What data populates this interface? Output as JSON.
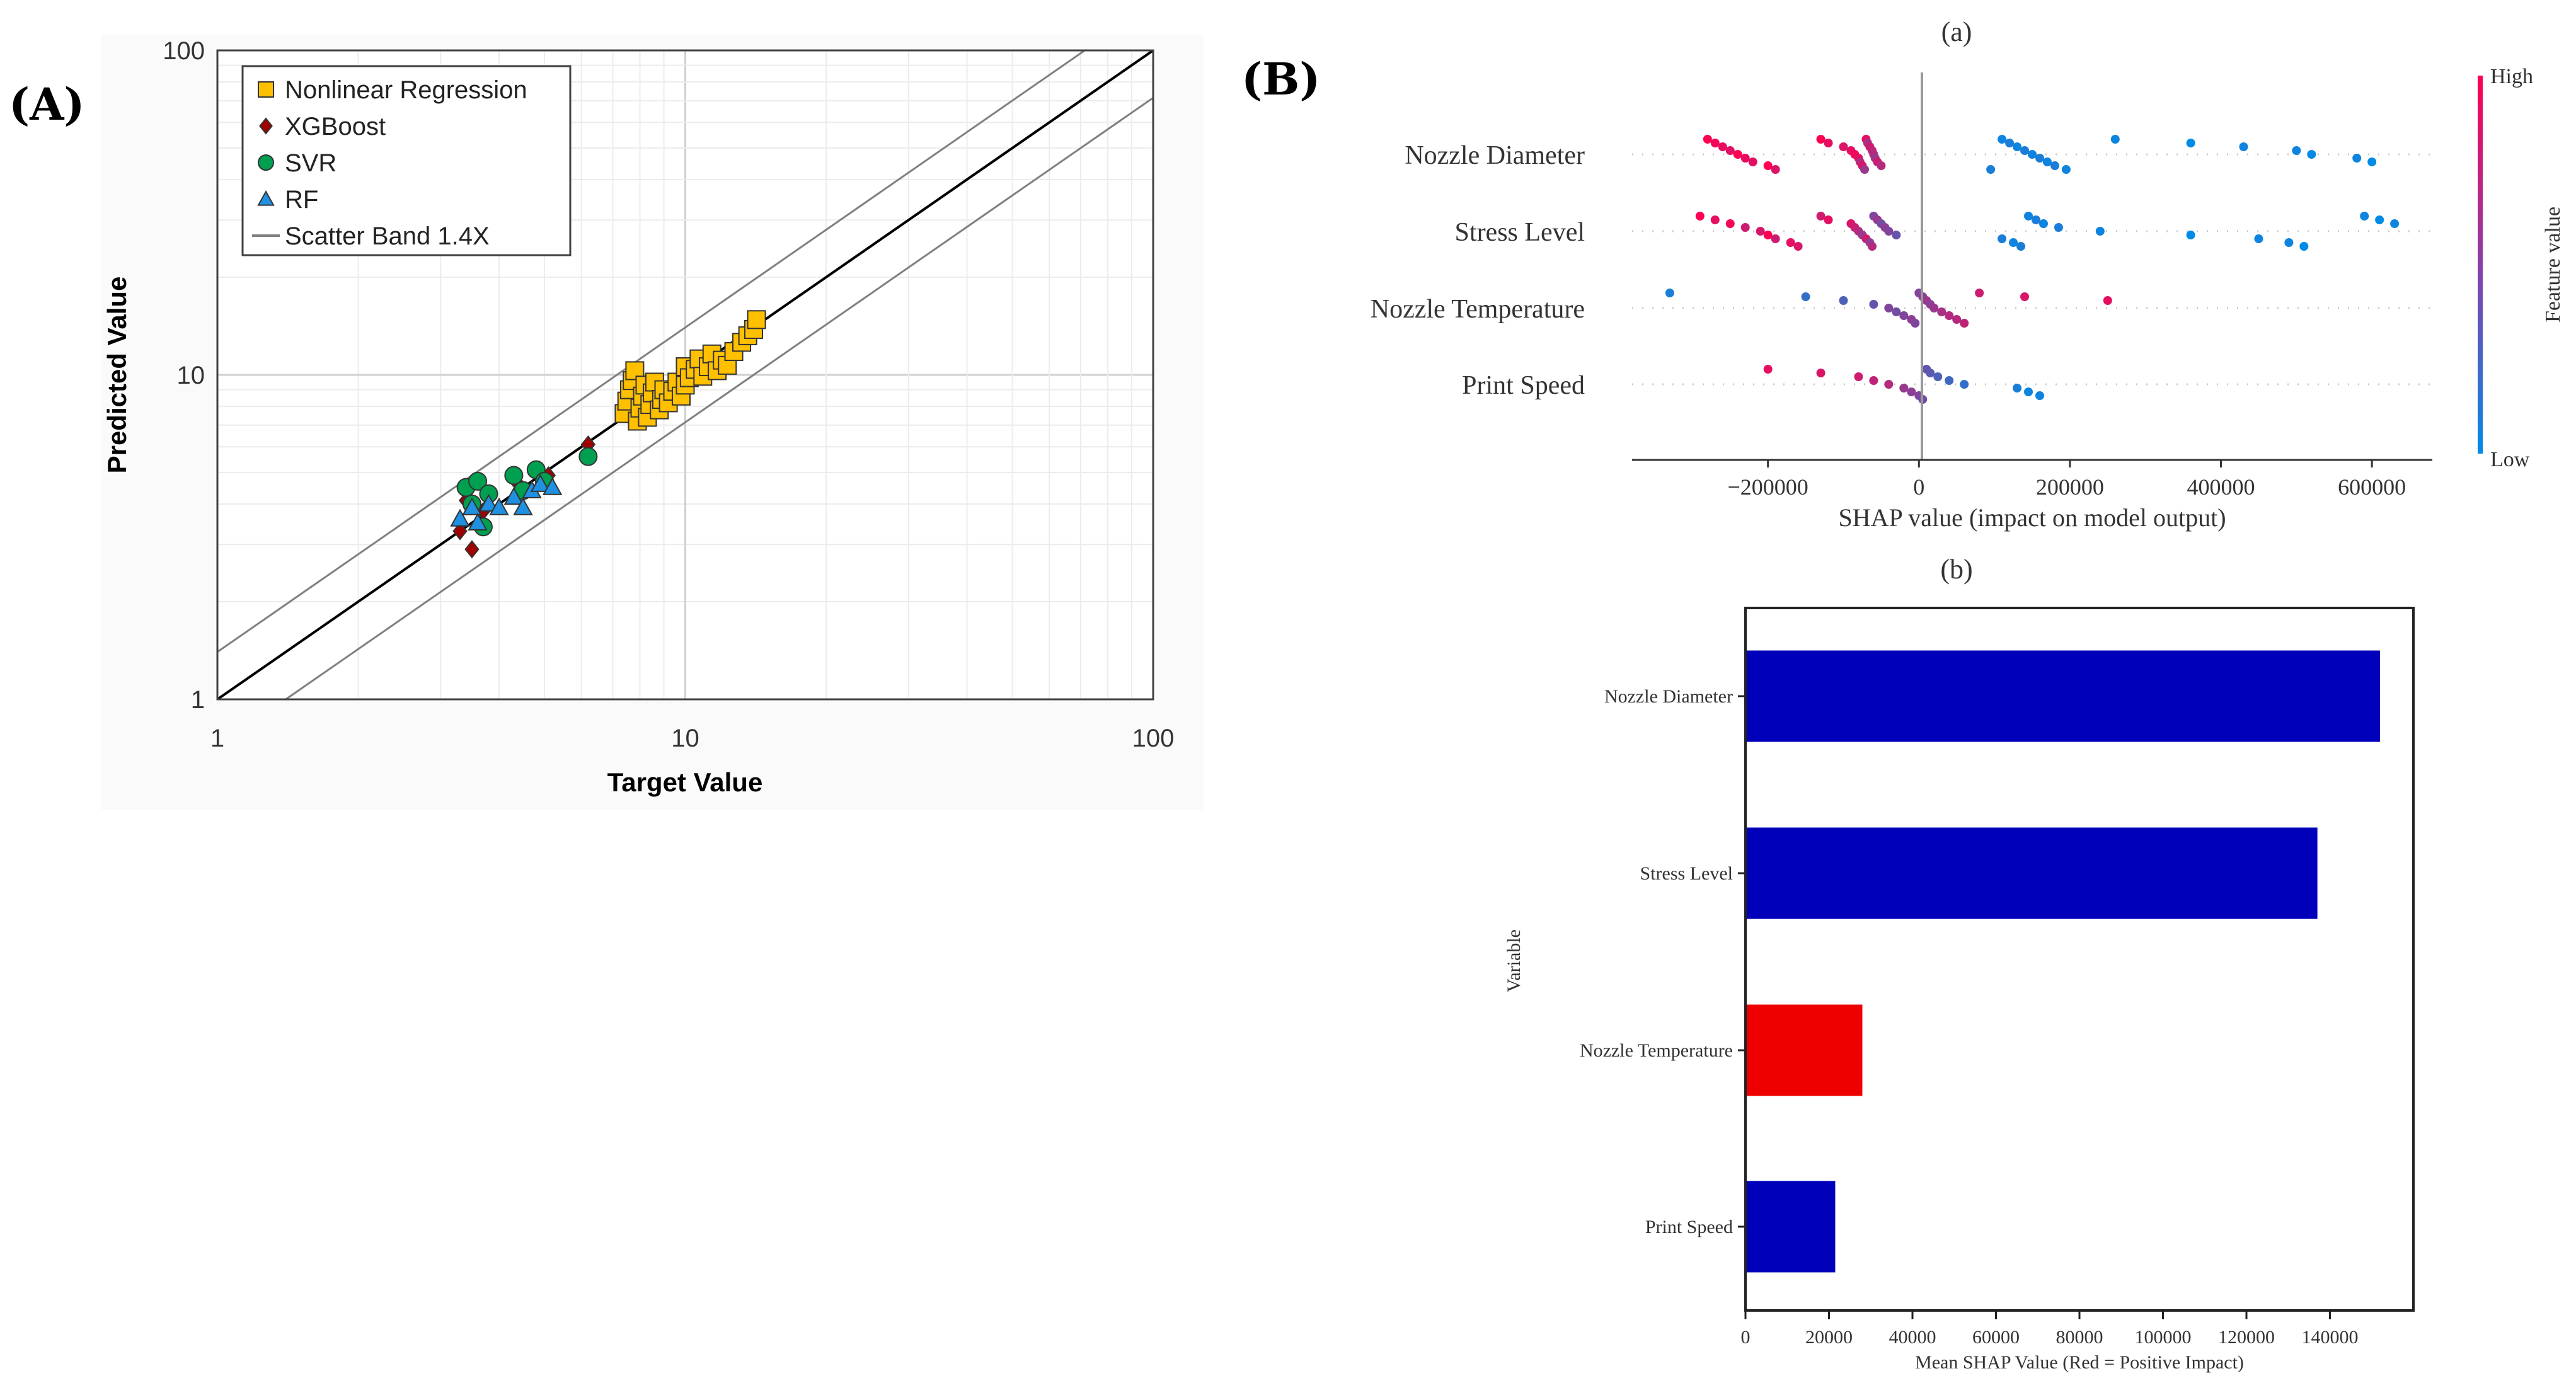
{
  "panels": {
    "a_label": "(A)",
    "b_label": "(B)"
  },
  "chart_data": [
    {
      "id": "A",
      "type": "scatter",
      "title": "",
      "xlabel": "Target Value",
      "ylabel": "Predicted Value",
      "xscale": "log",
      "yscale": "log",
      "xlim": [
        1,
        100
      ],
      "ylim": [
        1,
        100
      ],
      "x_ticks": [
        "1",
        "10",
        "100"
      ],
      "y_ticks": [
        "1",
        "10",
        "100"
      ],
      "grid": true,
      "legend_position": "top-left",
      "reference_lines": [
        {
          "name": "",
          "factor": 1,
          "color": "#000000"
        },
        {
          "name": "Scatter Band 1.4X",
          "factor": 1.4,
          "color": "#808080"
        },
        {
          "name": "Scatter Band 1.4X",
          "factor": 0.7142857,
          "color": "#808080"
        }
      ],
      "legend": [
        {
          "name": "Nonlinear Regression",
          "marker": "square",
          "color": "#FFC000"
        },
        {
          "name": "XGBoost",
          "marker": "diamond",
          "color": "#A00000"
        },
        {
          "name": "SVR",
          "marker": "circle",
          "color": "#00A050"
        },
        {
          "name": "RF",
          "marker": "triangle",
          "color": "#2090E0"
        },
        {
          "name": "Scatter Band 1.4X",
          "marker": "line",
          "color": "#808080"
        }
      ],
      "series": [
        {
          "name": "Nonlinear Regression",
          "marker": "square",
          "color": "#FFC000",
          "points": [
            [
              7.4,
              7.6
            ],
            [
              7.5,
              8.3
            ],
            [
              7.6,
              9.0
            ],
            [
              7.7,
              9.6
            ],
            [
              7.8,
              10.3
            ],
            [
              7.9,
              7.2
            ],
            [
              8.0,
              7.9
            ],
            [
              8.1,
              8.6
            ],
            [
              8.2,
              9.3
            ],
            [
              8.3,
              7.4
            ],
            [
              8.4,
              8.1
            ],
            [
              8.5,
              8.8
            ],
            [
              8.6,
              9.5
            ],
            [
              8.8,
              7.8
            ],
            [
              8.9,
              8.4
            ],
            [
              9.0,
              9.0
            ],
            [
              9.2,
              8.2
            ],
            [
              9.4,
              8.9
            ],
            [
              9.6,
              9.5
            ],
            [
              9.8,
              8.6
            ],
            [
              10.0,
              9.3
            ],
            [
              10.0,
              10.6
            ],
            [
              10.2,
              9.8
            ],
            [
              10.5,
              10.4
            ],
            [
              10.7,
              11.2
            ],
            [
              10.9,
              9.9
            ],
            [
              11.2,
              10.6
            ],
            [
              11.4,
              11.6
            ],
            [
              11.7,
              10.3
            ],
            [
              12.0,
              11.1
            ],
            [
              12.3,
              10.7
            ],
            [
              12.7,
              11.8
            ],
            [
              13.2,
              12.6
            ],
            [
              13.6,
              13.2
            ],
            [
              14.0,
              13.8
            ],
            [
              14.2,
              14.8
            ]
          ]
        },
        {
          "name": "XGBoost",
          "marker": "diamond",
          "color": "#A00000",
          "points": [
            [
              3.3,
              3.3
            ],
            [
              3.4,
              4.1
            ],
            [
              3.5,
              2.9
            ],
            [
              3.7,
              3.8
            ],
            [
              4.4,
              4.6
            ],
            [
              5.1,
              4.9
            ],
            [
              6.2,
              6.1
            ]
          ]
        },
        {
          "name": "SVR",
          "marker": "circle",
          "color": "#00A050",
          "points": [
            [
              3.4,
              4.5
            ],
            [
              3.5,
              4.0
            ],
            [
              3.6,
              4.7
            ],
            [
              3.7,
              3.4
            ],
            [
              3.8,
              4.3
            ],
            [
              4.3,
              4.9
            ],
            [
              4.5,
              4.4
            ],
            [
              4.8,
              5.1
            ],
            [
              5.0,
              4.7
            ],
            [
              6.2,
              5.6
            ]
          ]
        },
        {
          "name": "RF",
          "marker": "triangle",
          "color": "#2090E0",
          "points": [
            [
              3.3,
              3.6
            ],
            [
              3.5,
              3.9
            ],
            [
              3.6,
              3.5
            ],
            [
              3.8,
              4.0
            ],
            [
              4.0,
              3.9
            ],
            [
              4.3,
              4.2
            ],
            [
              4.5,
              3.9
            ],
            [
              4.7,
              4.4
            ],
            [
              4.9,
              4.6
            ],
            [
              5.2,
              4.5
            ]
          ]
        }
      ]
    },
    {
      "id": "B-a",
      "type": "scatter",
      "subtitle": "(a)",
      "xlabel": "SHAP value (impact on model output)",
      "categories": [
        "Nozzle Diameter",
        "Stress Level",
        "Nozzle Temperature",
        "Print Speed"
      ],
      "xlim": [
        -380000,
        680000
      ],
      "x_ticks": [
        -200000,
        0,
        200000,
        400000,
        600000
      ],
      "colorbar": {
        "label": "Feature value",
        "high": "High",
        "low": "Low",
        "high_color": "#FF0052",
        "low_color": "#008BE6"
      },
      "series": [
        {
          "name": "Nozzle Diameter",
          "points": [
            [
              -280000,
              1
            ],
            [
              -270000,
              0.95
            ],
            [
              -260000,
              0.9
            ],
            [
              -250000,
              0.88
            ],
            [
              -240000,
              1
            ],
            [
              -230000,
              0.92
            ],
            [
              -220000,
              0.9
            ],
            [
              -200000,
              1
            ],
            [
              -190000,
              0.85
            ],
            [
              -130000,
              1
            ],
            [
              -120000,
              0.9
            ],
            [
              -100000,
              0.85
            ],
            [
              -90000,
              0.9
            ],
            [
              -85000,
              0.95
            ],
            [
              -80000,
              0.9
            ],
            [
              -78000,
              0.7
            ],
            [
              -75000,
              0.85
            ],
            [
              -72000,
              0.6
            ],
            [
              -70000,
              0.9
            ],
            [
              -68000,
              0.65
            ],
            [
              -65000,
              0.8
            ],
            [
              -62000,
              0.75
            ],
            [
              -60000,
              0.7
            ],
            [
              -58000,
              0.6
            ],
            [
              -55000,
              0.8
            ],
            [
              -50000,
              0.7
            ],
            [
              95000,
              0.1
            ],
            [
              110000,
              0.05
            ],
            [
              120000,
              0.1
            ],
            [
              130000,
              0.05
            ],
            [
              140000,
              0.1
            ],
            [
              150000,
              0.05
            ],
            [
              160000,
              0.1
            ],
            [
              170000,
              0.05
            ],
            [
              180000,
              0.1
            ],
            [
              195000,
              0.05
            ],
            [
              260000,
              0.05
            ],
            [
              360000,
              0.0
            ],
            [
              430000,
              0.05
            ],
            [
              500000,
              0.05
            ],
            [
              520000,
              0.0
            ],
            [
              580000,
              0.05
            ],
            [
              600000,
              0.0
            ]
          ]
        },
        {
          "name": "Stress Level",
          "points": [
            [
              -290000,
              1
            ],
            [
              -270000,
              0.9
            ],
            [
              -250000,
              0.95
            ],
            [
              -230000,
              0.8
            ],
            [
              -210000,
              0.85
            ],
            [
              -200000,
              1
            ],
            [
              -190000,
              0.8
            ],
            [
              -170000,
              0.9
            ],
            [
              -160000,
              0.85
            ],
            [
              -130000,
              0.8
            ],
            [
              -120000,
              0.9
            ],
            [
              -90000,
              0.85
            ],
            [
              -85000,
              0.8
            ],
            [
              -80000,
              0.7
            ],
            [
              -75000,
              0.6
            ],
            [
              -70000,
              0.8
            ],
            [
              -65000,
              0.55
            ],
            [
              -62000,
              0.7
            ],
            [
              -60000,
              0.5
            ],
            [
              -55000,
              0.6
            ],
            [
              -50000,
              0.45
            ],
            [
              -45000,
              0.55
            ],
            [
              -40000,
              0.5
            ],
            [
              -30000,
              0.4
            ],
            [
              110000,
              0.1
            ],
            [
              125000,
              0.05
            ],
            [
              135000,
              0.1
            ],
            [
              145000,
              0.05
            ],
            [
              155000,
              0.1
            ],
            [
              165000,
              0.05
            ],
            [
              185000,
              0.1
            ],
            [
              240000,
              0.05
            ],
            [
              360000,
              0.0
            ],
            [
              450000,
              0.05
            ],
            [
              490000,
              0.05
            ],
            [
              510000,
              0.0
            ],
            [
              590000,
              0.05
            ],
            [
              610000,
              0.0
            ],
            [
              630000,
              0.05
            ]
          ]
        },
        {
          "name": "Nozzle Temperature",
          "points": [
            [
              -330000,
              0.1
            ],
            [
              -150000,
              0.2
            ],
            [
              -100000,
              0.3
            ],
            [
              -60000,
              0.4
            ],
            [
              -40000,
              0.5
            ],
            [
              -30000,
              0.45
            ],
            [
              -20000,
              0.5
            ],
            [
              -10000,
              0.55
            ],
            [
              -5000,
              0.5
            ],
            [
              0,
              0.5
            ],
            [
              5000,
              0.55
            ],
            [
              10000,
              0.6
            ],
            [
              15000,
              0.55
            ],
            [
              20000,
              0.6
            ],
            [
              30000,
              0.65
            ],
            [
              40000,
              0.7
            ],
            [
              50000,
              0.7
            ],
            [
              60000,
              0.75
            ],
            [
              80000,
              0.8
            ],
            [
              140000,
              0.85
            ],
            [
              250000,
              0.9
            ]
          ]
        },
        {
          "name": "Print Speed",
          "points": [
            [
              -200000,
              0.9
            ],
            [
              -130000,
              0.85
            ],
            [
              -80000,
              0.8
            ],
            [
              -60000,
              0.75
            ],
            [
              -40000,
              0.7
            ],
            [
              -20000,
              0.6
            ],
            [
              -10000,
              0.55
            ],
            [
              0,
              0.5
            ],
            [
              5000,
              0.45
            ],
            [
              10000,
              0.4
            ],
            [
              15000,
              0.35
            ],
            [
              25000,
              0.3
            ],
            [
              40000,
              0.25
            ],
            [
              60000,
              0.2
            ],
            [
              130000,
              0.1
            ],
            [
              145000,
              0.05
            ],
            [
              160000,
              0.05
            ]
          ]
        }
      ]
    },
    {
      "id": "B-b",
      "type": "bar",
      "orientation": "horizontal",
      "subtitle": "(b)",
      "xlabel": "Mean SHAP Value (Red = Positive Impact)",
      "ylabel": "Variable",
      "categories": [
        "Nozzle Diameter",
        "Stress Level",
        "Nozzle Temperature",
        "Print Speed"
      ],
      "values": [
        152000,
        137000,
        28000,
        21500
      ],
      "colors": [
        "#0000BB",
        "#0000BB",
        "#EE0000",
        "#0000BB"
      ],
      "xlim": [
        0,
        160000
      ],
      "x_ticks": [
        0,
        20000,
        40000,
        60000,
        80000,
        100000,
        120000,
        140000
      ]
    }
  ]
}
